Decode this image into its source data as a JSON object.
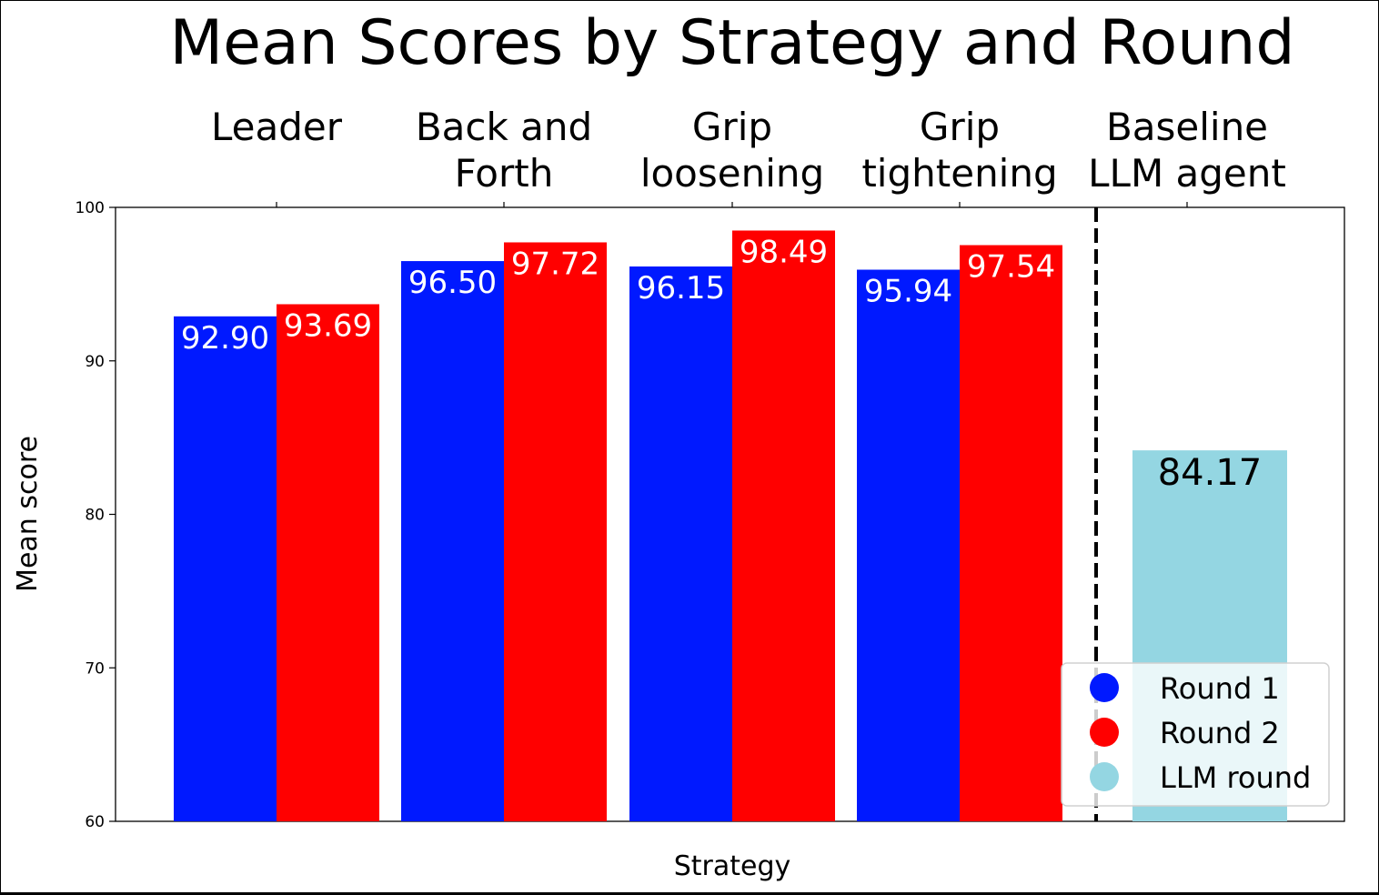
{
  "chart_data": {
    "type": "bar",
    "title": "Mean Scores by Strategy and Round",
    "xlabel": "Strategy",
    "ylabel": "Mean score",
    "ylim": [
      60,
      100
    ],
    "yticks": [
      "60",
      "70",
      "80",
      "90",
      "100"
    ],
    "categories": [
      [
        "Leader"
      ],
      [
        "Back and",
        "Forth"
      ],
      [
        "Grip",
        "loosening"
      ],
      [
        "Grip",
        "tightening"
      ],
      [
        "Baseline",
        "LLM agent"
      ]
    ],
    "series": [
      {
        "name": "Round 1",
        "color": "#0019ff",
        "values": [
          92.9,
          96.5,
          96.15,
          95.94,
          null
        ],
        "labels": [
          "92.90",
          "96.50",
          "96.15",
          "95.94",
          ""
        ]
      },
      {
        "name": "Round 2",
        "color": "#ff0000",
        "values": [
          93.69,
          97.72,
          98.49,
          97.54,
          null
        ],
        "labels": [
          "93.69",
          "97.72",
          "98.49",
          "97.54",
          ""
        ]
      },
      {
        "name": "LLM round",
        "color": "#94d6e2",
        "values": [
          null,
          null,
          null,
          null,
          84.17
        ],
        "labels": [
          "",
          "",
          "",
          "",
          "84.17"
        ]
      }
    ],
    "separator": "dashed vertical line between Grip tightening and Baseline LLM agent",
    "grid": false,
    "legend_position": "bottom-right"
  }
}
